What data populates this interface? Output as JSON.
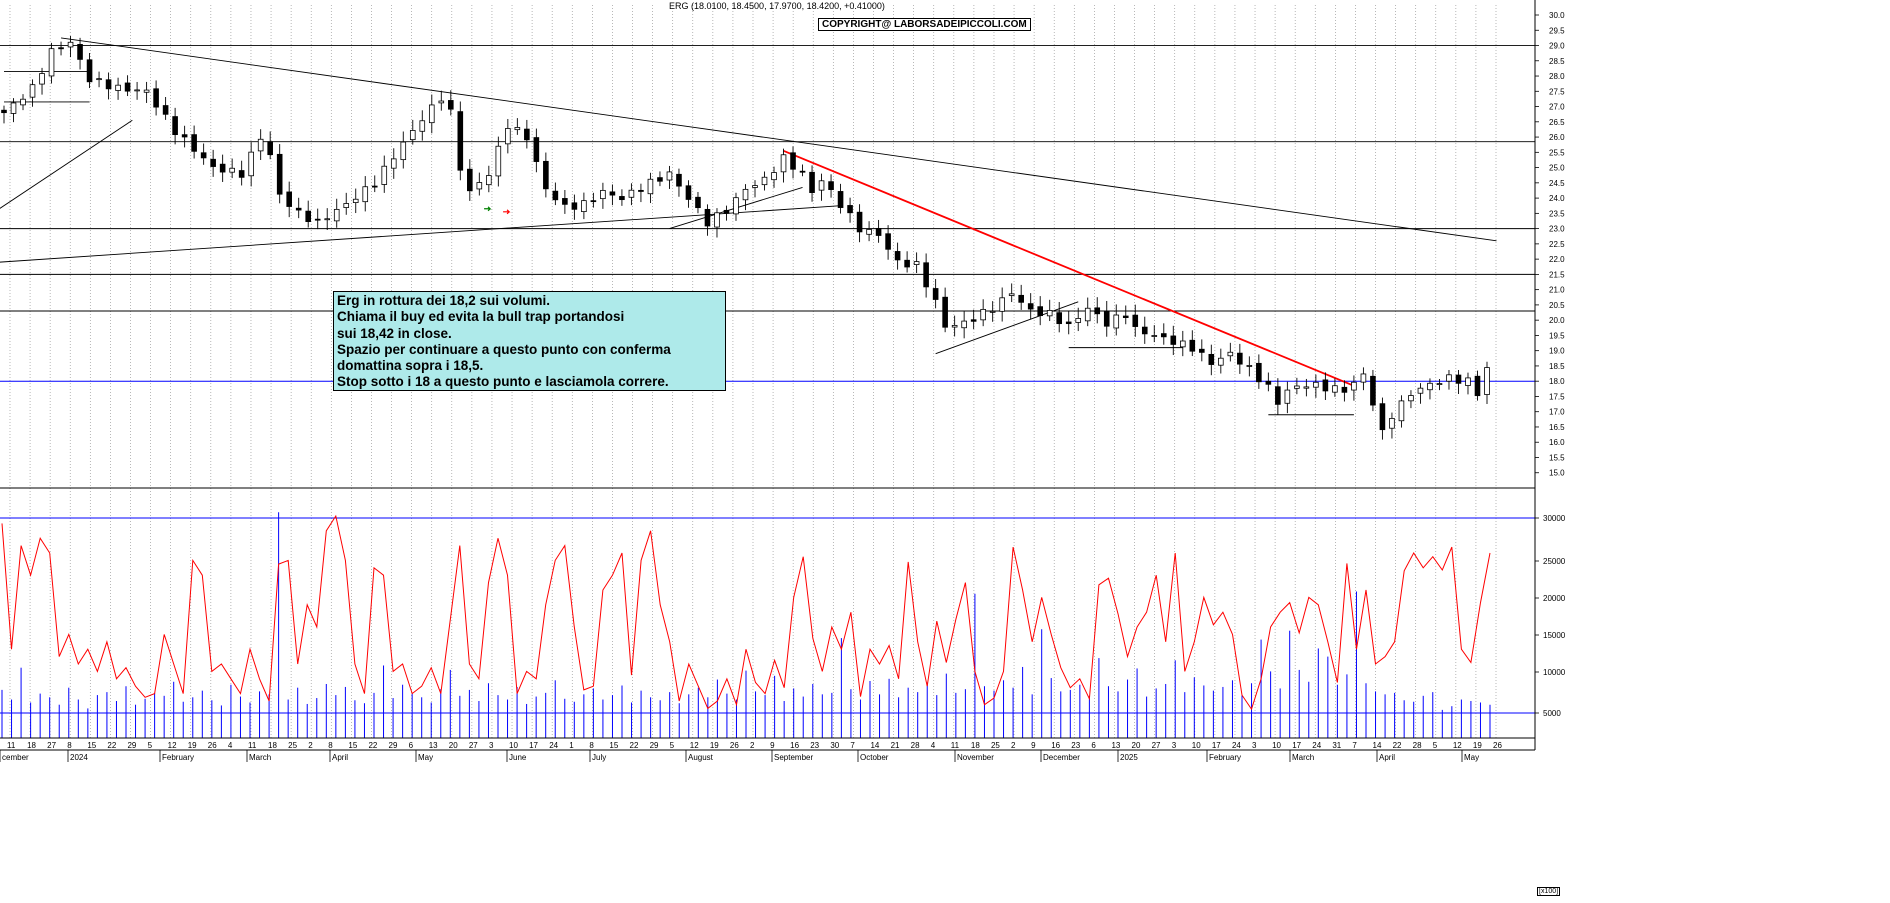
{
  "header": {
    "quote_line": "ERG (18.0100, 18.4500, 17.9700, 18.4200, +0.41000)",
    "copyright": "COPYRIGHT@ LABORSADEIPICCOLI.COM"
  },
  "annotation": {
    "lines": [
      "Erg in rottura dei 18,2 sui volumi.",
      "Chiama il buy ed evita la bull trap portandosi",
      "sui 18,42 in close.",
      "Spazio per continuare a questo punto  con conferma",
      "domattina sopra i 18,5.",
      "Stop sotto i 18 a questo punto e lasciamola correre."
    ]
  },
  "volume_scale_label": "[x100]",
  "colors": {
    "background": "#ffffff",
    "candle": "#000000",
    "resistance_line": "#ff0000",
    "oscillator": "#ff0000",
    "volume_bars": "#0000ff",
    "support_18": "#0000ff",
    "note_bg": "#aeeaea"
  },
  "chart_data": [
    {
      "type": "candlestick",
      "title": "",
      "ylim": [
        14.5,
        30.0
      ],
      "y_ticks": [
        "30.0",
        "29.5",
        "29.0",
        "28.5",
        "28.0",
        "27.5",
        "27.0",
        "26.5",
        "26.0",
        "25.5",
        "25.0",
        "24.5",
        "24.0",
        "23.5",
        "23.0",
        "22.5",
        "22.0",
        "21.5",
        "21.0",
        "20.5",
        "20.0",
        "19.5",
        "19.0",
        "18.5",
        "18.0",
        "17.5",
        "17.0",
        "16.5",
        "16.0",
        "15.5",
        "15.0"
      ],
      "x_tick_labels": [
        "11",
        "18",
        "27",
        "8",
        "15",
        "22",
        "29",
        "5",
        "12",
        "19",
        "26",
        "4",
        "11",
        "18",
        "25",
        "2",
        "8",
        "15",
        "22",
        "29",
        "6",
        "13",
        "20",
        "27",
        "3",
        "10",
        "17",
        "24",
        "1",
        "8",
        "15",
        "22",
        "29",
        "5",
        "12",
        "19",
        "26",
        "2",
        "9",
        "16",
        "23",
        "30",
        "7",
        "14",
        "21",
        "28",
        "4",
        "11",
        "18",
        "25",
        "2",
        "9",
        "16",
        "23",
        "6",
        "13",
        "20",
        "27",
        "3",
        "10",
        "17",
        "24",
        "3",
        "10",
        "17",
        "24",
        "31",
        "7",
        "14",
        "22",
        "28",
        "5",
        "12",
        "19",
        "26"
      ],
      "month_labels": [
        "cember",
        "2024",
        "February",
        "March",
        "April",
        "May",
        "June",
        "July",
        "August",
        "September",
        "October",
        "November",
        "December",
        "2025",
        "February",
        "March",
        "April",
        "May"
      ],
      "price_path": [
        [
          0,
          26.8
        ],
        [
          3,
          27.6
        ],
        [
          5,
          28.8
        ],
        [
          7,
          29.1
        ],
        [
          9,
          27.9
        ],
        [
          12,
          27.6
        ],
        [
          15,
          27.5
        ],
        [
          18,
          26.2
        ],
        [
          20,
          25.6
        ],
        [
          22,
          25.0
        ],
        [
          25,
          24.8
        ],
        [
          27,
          26.0
        ],
        [
          28,
          25.4
        ],
        [
          29,
          24.1
        ],
        [
          31,
          23.5
        ],
        [
          33,
          23.2
        ],
        [
          36,
          23.8
        ],
        [
          39,
          24.5
        ],
        [
          42,
          25.8
        ],
        [
          44,
          26.6
        ],
        [
          46,
          27.3
        ],
        [
          47,
          26.8
        ],
        [
          48,
          25.0
        ],
        [
          49,
          24.2
        ],
        [
          51,
          24.8
        ],
        [
          53,
          26.4
        ],
        [
          55,
          26.0
        ],
        [
          57,
          24.3
        ],
        [
          59,
          23.7
        ],
        [
          61,
          23.8
        ],
        [
          63,
          24.2
        ],
        [
          65,
          24.0
        ],
        [
          68,
          24.5
        ],
        [
          70,
          24.8
        ],
        [
          72,
          24.0
        ],
        [
          74,
          23.2
        ],
        [
          76,
          23.6
        ],
        [
          78,
          24.3
        ],
        [
          80,
          24.6
        ],
        [
          82,
          25.3
        ],
        [
          84,
          24.8
        ],
        [
          85,
          24.2
        ],
        [
          86,
          24.6
        ],
        [
          88,
          23.8
        ],
        [
          90,
          23.0
        ],
        [
          92,
          22.8
        ],
        [
          94,
          21.9
        ],
        [
          96,
          21.8
        ],
        [
          98,
          20.6
        ],
        [
          99,
          19.8
        ],
        [
          101,
          19.9
        ],
        [
          104,
          20.4
        ],
        [
          106,
          20.9
        ],
        [
          108,
          20.3
        ],
        [
          110,
          20.2
        ],
        [
          112,
          19.8
        ],
        [
          114,
          20.4
        ],
        [
          116,
          19.9
        ],
        [
          118,
          20.2
        ],
        [
          119,
          19.7
        ],
        [
          121,
          19.5
        ],
        [
          123,
          19.3
        ],
        [
          125,
          19.1
        ],
        [
          127,
          18.6
        ],
        [
          129,
          18.9
        ],
        [
          131,
          18.4
        ],
        [
          133,
          17.8
        ],
        [
          134,
          17.3
        ],
        [
          135,
          17.7
        ],
        [
          137,
          17.9
        ],
        [
          139,
          17.8
        ],
        [
          141,
          17.7
        ],
        [
          143,
          18.2
        ],
        [
          144,
          17.3
        ],
        [
          145,
          16.3
        ],
        [
          146,
          16.9
        ],
        [
          148,
          17.6
        ],
        [
          150,
          17.9
        ],
        [
          152,
          18.1
        ],
        [
          154,
          18.0
        ],
        [
          155,
          17.6
        ],
        [
          156,
          18.42
        ]
      ],
      "n_sessions": 157
    },
    {
      "type": "bar+line",
      "title": "",
      "ylim": [
        0,
        30000
      ],
      "y_ticks": [
        "30000",
        "25000",
        "20000",
        "15000",
        "10000",
        "5000"
      ],
      "volume_bars": [
        6500,
        5200,
        9500,
        4800,
        6000,
        5500,
        4500,
        6800,
        5200,
        4000,
        5800,
        6200,
        5000,
        7000,
        4500,
        5300,
        6100,
        5700,
        7600,
        4900,
        5500,
        6400,
        5100,
        4400,
        7200,
        5600,
        4800,
        6300,
        5900,
        30500,
        5200,
        6800,
        4600,
        5400,
        7300,
        5800,
        6900,
        5100,
        4700,
        6100,
        9800,
        5400,
        7200,
        6000,
        5500,
        4800,
        6600,
        9200,
        5700,
        6500,
        5000,
        7400,
        5800,
        5200,
        6900,
        4600,
        5600,
        6100,
        7800,
        5300,
        4900,
        5900,
        6700,
        5200,
        5800,
        7100,
        4800,
        6400,
        5500,
        5100,
        6200,
        4700,
        5900,
        6800,
        5500,
        7900,
        6000,
        5200,
        9100,
        6300,
        5800,
        8400,
        5000,
        6700,
        5600,
        7300,
        5900,
        6100,
        13500,
        6600,
        5200,
        7700,
        5900,
        8000,
        5500,
        6800,
        6200,
        7500,
        5800,
        8700,
        6100,
        6600,
        19500,
        7000,
        6400,
        7800,
        6800,
        9600,
        5900,
        14700,
        8100,
        6300,
        6500,
        7200,
        5700,
        10800,
        7000,
        6300,
        7900,
        9400,
        5600,
        6700,
        7300,
        10500,
        6200,
        8200,
        7100,
        6400,
        6900,
        7800,
        5800,
        7400,
        13300,
        9000,
        6700,
        14500,
        9200,
        7600,
        12100,
        11000,
        7200,
        8600,
        19800,
        7400,
        6300,
        5900,
        6100,
        5100,
        4900,
        5700,
        6200,
        3800,
        4300,
        5200,
        5000,
        4800,
        4500
      ],
      "oscillator": [
        29000,
        12000,
        26000,
        22000,
        27000,
        25000,
        11000,
        14000,
        10000,
        12000,
        9000,
        13000,
        8000,
        9500,
        7000,
        5500,
        6000,
        14000,
        10000,
        6000,
        24000,
        22000,
        9000,
        10000,
        8000,
        6000,
        12000,
        8000,
        5000,
        23500,
        24000,
        10000,
        18000,
        15000,
        28000,
        30000,
        24000,
        10000,
        6000,
        23000,
        22000,
        9000,
        10000,
        6000,
        7000,
        9500,
        6000,
        16000,
        26000,
        10000,
        8000,
        21000,
        27000,
        22000,
        6000,
        9000,
        8000,
        18000,
        24000,
        26000,
        15000,
        6500,
        7000,
        20000,
        22000,
        25000,
        8500,
        24000,
        28000,
        18000,
        13000,
        5000,
        10000,
        7000,
        4000,
        5000,
        8000,
        4500,
        12000,
        7500,
        6000,
        10500,
        6800,
        19000,
        24500,
        13500,
        9000,
        15000,
        12000,
        17000,
        5600,
        12000,
        10000,
        12500,
        8000,
        23800,
        13000,
        7000,
        15800,
        10200,
        16000,
        21000,
        9000,
        4500,
        5400,
        9000,
        25800,
        20000,
        13000,
        19000,
        14000,
        9500,
        6800,
        8000,
        5300,
        20700,
        21600,
        16800,
        11000,
        15000,
        17000,
        22000,
        13000,
        25000,
        9000,
        13000,
        19000,
        15300,
        17000,
        14000,
        5800,
        3900,
        8000,
        15000,
        17000,
        18300,
        14200,
        19000,
        18000,
        13000,
        7500,
        23600,
        12000,
        20000,
        10000,
        11000,
        13000,
        22600,
        25000,
        23000,
        24500,
        22700,
        25800,
        12000,
        10200,
        18300,
        25000
      ]
    }
  ]
}
